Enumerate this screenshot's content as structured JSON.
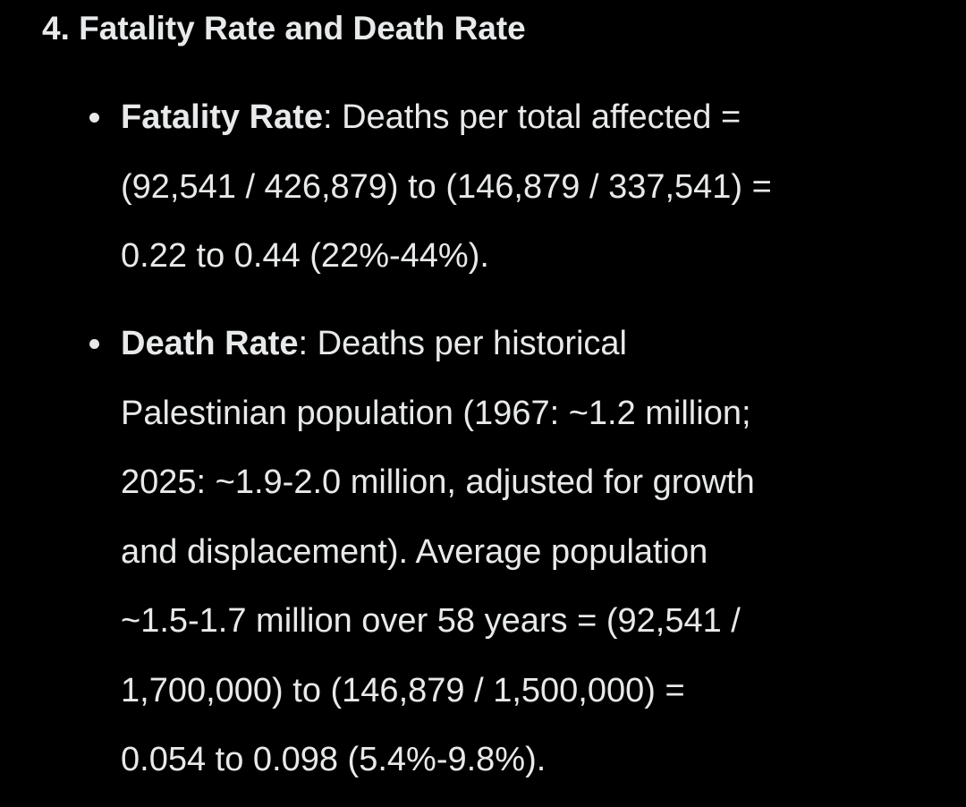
{
  "section": {
    "heading": "4. Fatality Rate and Death Rate"
  },
  "bullets": [
    {
      "label": "Fatality Rate",
      "separator": ":",
      "lines": [
        " Deaths per total affected =",
        "(92,541 / 426,879) to (146,879 / 337,541) =",
        "0.22 to 0.44 (22%-44%)."
      ]
    },
    {
      "label": "Death Rate",
      "separator": ":",
      "lines": [
        " Deaths per historical",
        "Palestinian population (1967: ~1.2 million;",
        "2025: ~1.9-2.0 million, adjusted for growth",
        "and displacement). Average population",
        "~1.5-1.7 million over 58 years = (92,541 /",
        "1,700,000) to (146,879 / 1,500,000) =",
        "0.054 to 0.098 (5.4%-9.8%)."
      ]
    }
  ]
}
